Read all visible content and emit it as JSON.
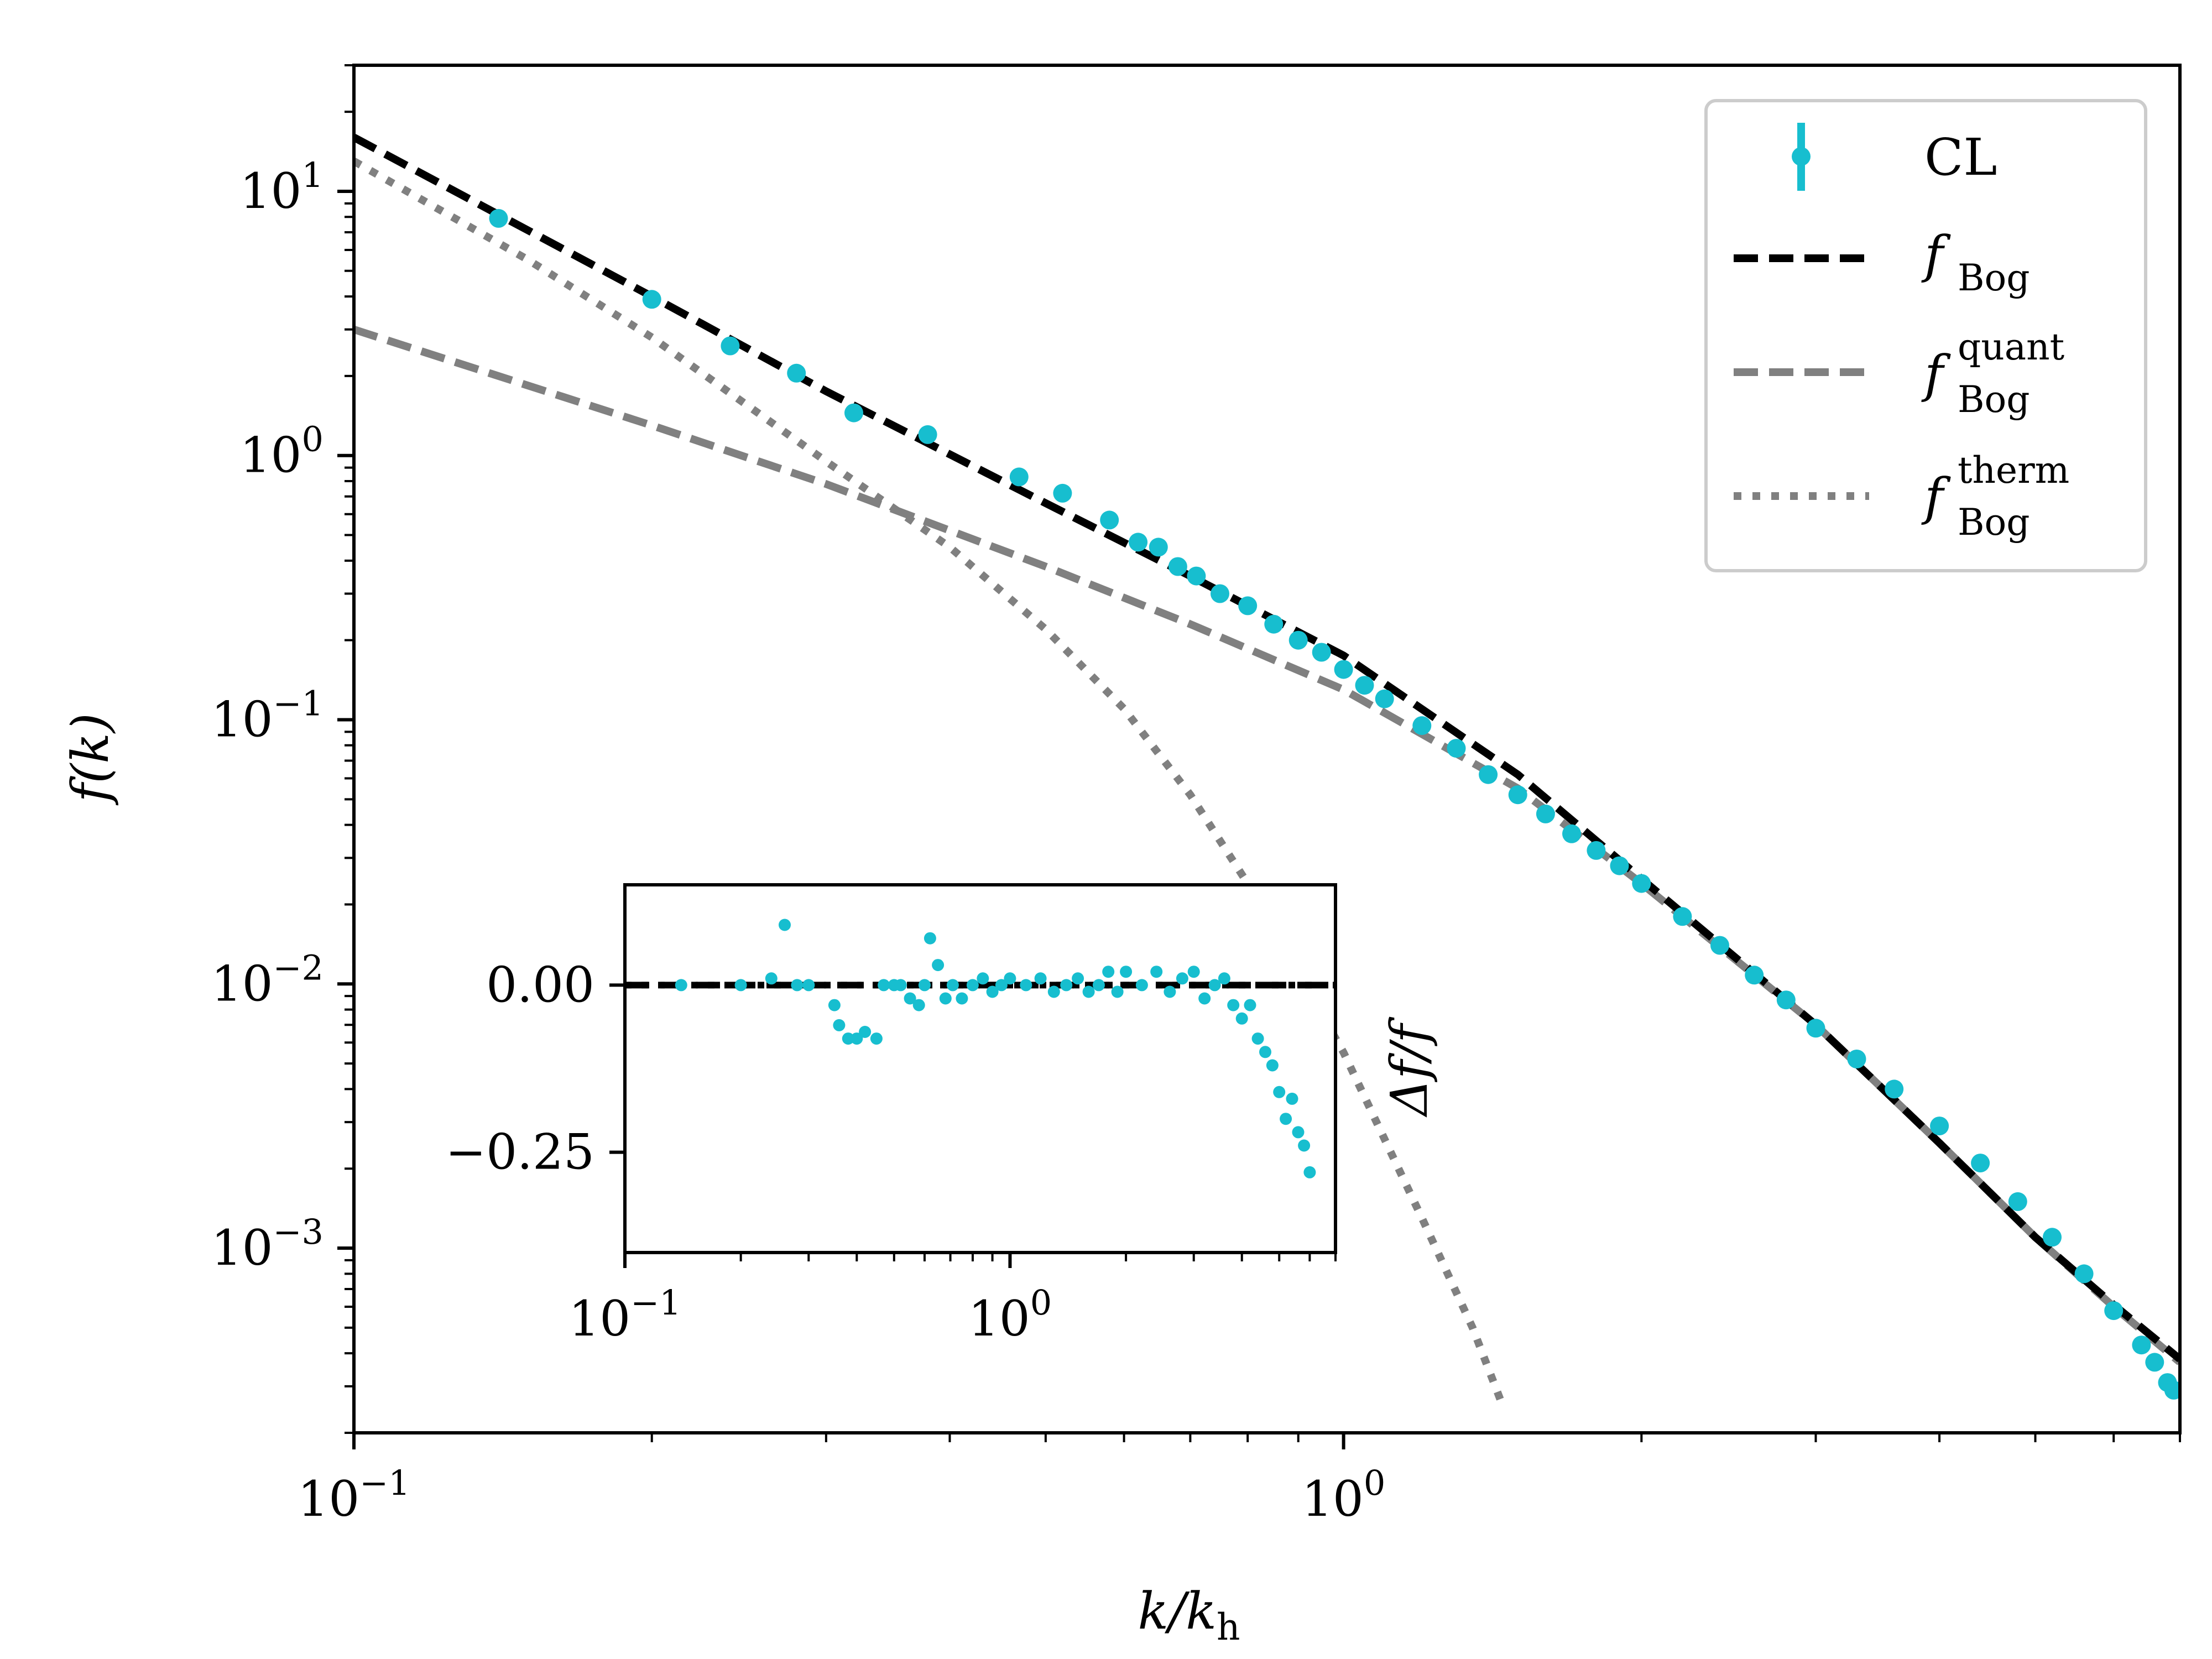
{
  "chart_data": [
    {
      "type": "line",
      "role": "main",
      "xscale": "log",
      "yscale": "log",
      "xlim": [
        0.1,
        7.0
      ],
      "ylim": [
        0.0002,
        30
      ],
      "xlabel": "k/k",
      "xlabel_sub": "h",
      "ylabel": "f(k)",
      "x_ticks": [
        {
          "value": 0.1,
          "base": "10",
          "exp": "−1"
        },
        {
          "value": 1,
          "base": "10",
          "exp": "0"
        }
      ],
      "y_ticks": [
        {
          "value": 10,
          "base": "10",
          "exp": "1"
        },
        {
          "value": 1,
          "base": "10",
          "exp": "0"
        },
        {
          "value": 0.1,
          "base": "10",
          "exp": "−1"
        },
        {
          "value": 0.01,
          "base": "10",
          "exp": "−2"
        },
        {
          "value": 0.001,
          "base": "10",
          "exp": "−3"
        }
      ],
      "legend_position": "top-right",
      "series": [
        {
          "name": "CL",
          "style": "markers-errorbar",
          "color": "#17becf",
          "points": [
            [
              0.14,
              7.9
            ],
            [
              0.2,
              3.9
            ],
            [
              0.24,
              2.6
            ],
            [
              0.28,
              2.05
            ],
            [
              0.32,
              1.45
            ],
            [
              0.38,
              1.2
            ],
            [
              0.47,
              0.83
            ],
            [
              0.52,
              0.72
            ],
            [
              0.58,
              0.57
            ],
            [
              0.62,
              0.47
            ],
            [
              0.65,
              0.45
            ],
            [
              0.68,
              0.38
            ],
            [
              0.71,
              0.35
            ],
            [
              0.75,
              0.3
            ],
            [
              0.8,
              0.27
            ],
            [
              0.85,
              0.23
            ],
            [
              0.9,
              0.2
            ],
            [
              0.95,
              0.18
            ],
            [
              1.0,
              0.155
            ],
            [
              1.05,
              0.135
            ],
            [
              1.1,
              0.12
            ],
            [
              1.2,
              0.095
            ],
            [
              1.3,
              0.078
            ],
            [
              1.4,
              0.062
            ],
            [
              1.5,
              0.052
            ],
            [
              1.6,
              0.044
            ],
            [
              1.7,
              0.037
            ],
            [
              1.8,
              0.032
            ],
            [
              1.9,
              0.028
            ],
            [
              2.0,
              0.024
            ],
            [
              2.2,
              0.018
            ],
            [
              2.4,
              0.014
            ],
            [
              2.6,
              0.0108
            ],
            [
              2.8,
              0.0087
            ],
            [
              3.0,
              0.0068
            ],
            [
              3.3,
              0.0052
            ],
            [
              3.6,
              0.004
            ],
            [
              4.0,
              0.0029
            ],
            [
              4.4,
              0.0021
            ],
            [
              4.8,
              0.0015
            ],
            [
              5.2,
              0.0011
            ],
            [
              5.6,
              0.0008
            ],
            [
              6.0,
              0.00058
            ],
            [
              6.4,
              0.00043
            ],
            [
              6.6,
              0.00037
            ],
            [
              6.8,
              0.00031
            ],
            [
              6.9,
              0.00029
            ]
          ]
        },
        {
          "name": "f",
          "name_sub": "Bog",
          "style": "dashed",
          "color": "#000000",
          "points": [
            [
              0.1,
              16.0
            ],
            [
              0.2,
              4.0
            ],
            [
              0.3,
              1.75
            ],
            [
              0.5,
              0.66
            ],
            [
              0.7,
              0.35
            ],
            [
              1.0,
              0.175
            ],
            [
              1.5,
              0.062
            ],
            [
              2.0,
              0.025
            ],
            [
              3.0,
              0.007
            ],
            [
              4.0,
              0.0025
            ],
            [
              5.0,
              0.0011
            ],
            [
              6.0,
              0.00061
            ],
            [
              7.0,
              0.00038
            ]
          ]
        },
        {
          "name": "f",
          "name_sub": "Bog",
          "name_sup": "quant",
          "style": "dashed",
          "color": "#808080",
          "points": [
            [
              0.1,
              3.0
            ],
            [
              0.2,
              1.3
            ],
            [
              0.3,
              0.78
            ],
            [
              0.5,
              0.38
            ],
            [
              0.7,
              0.23
            ],
            [
              1.0,
              0.13
            ],
            [
              1.5,
              0.055
            ],
            [
              2.0,
              0.024
            ],
            [
              3.0,
              0.007
            ],
            [
              4.0,
              0.0025
            ],
            [
              5.0,
              0.0011
            ],
            [
              6.0,
              0.0006
            ],
            [
              7.0,
              0.00037
            ]
          ]
        },
        {
          "name": "f",
          "name_sub": "Bog",
          "name_sup": "therm",
          "style": "dotted",
          "color": "#808080",
          "points": [
            [
              0.1,
              13.0
            ],
            [
              0.15,
              5.5
            ],
            [
              0.2,
              2.8
            ],
            [
              0.3,
              0.95
            ],
            [
              0.4,
              0.45
            ],
            [
              0.5,
              0.22
            ],
            [
              0.6,
              0.11
            ],
            [
              0.7,
              0.052
            ],
            [
              0.8,
              0.024
            ],
            [
              1.0,
              0.0055
            ],
            [
              1.2,
              0.0013
            ],
            [
              1.35,
              0.0005
            ],
            [
              1.45,
              0.00025
            ]
          ]
        }
      ]
    },
    {
      "type": "scatter",
      "role": "inset",
      "xscale": "log",
      "xlim": [
        0.1,
        7.0
      ],
      "ylim": [
        -0.4,
        0.15
      ],
      "ylabel": "Δf/f",
      "x_ticks": [
        {
          "value": 0.1,
          "base": "10",
          "exp": "−1"
        },
        {
          "value": 1,
          "base": "10",
          "exp": "0"
        }
      ],
      "y_ticks": [
        {
          "value": 0.0,
          "label": "0.00"
        },
        {
          "value": -0.25,
          "label": "−0.25"
        }
      ],
      "reference_lines": [
        {
          "name": "f_Bog",
          "y": 0.0,
          "style": "dashed",
          "color": "#000000"
        },
        {
          "name": "f_Bog zero dotted",
          "y": 0.0,
          "style": "dotted",
          "color": "#000000"
        }
      ],
      "series": [
        {
          "name": "CL",
          "color": "#17becf",
          "points": [
            [
              0.14,
              0.0
            ],
            [
              0.2,
              0.0
            ],
            [
              0.24,
              0.01
            ],
            [
              0.26,
              0.09
            ],
            [
              0.28,
              0.0
            ],
            [
              0.3,
              0.0
            ],
            [
              0.35,
              -0.03
            ],
            [
              0.36,
              -0.06
            ],
            [
              0.38,
              -0.08
            ],
            [
              0.4,
              -0.08
            ],
            [
              0.42,
              -0.07
            ],
            [
              0.45,
              -0.08
            ],
            [
              0.47,
              0.0
            ],
            [
              0.5,
              0.0
            ],
            [
              0.52,
              0.0
            ],
            [
              0.55,
              -0.02
            ],
            [
              0.58,
              -0.03
            ],
            [
              0.6,
              0.0
            ],
            [
              0.62,
              0.07
            ],
            [
              0.65,
              0.03
            ],
            [
              0.68,
              -0.02
            ],
            [
              0.71,
              0.0
            ],
            [
              0.75,
              -0.02
            ],
            [
              0.8,
              0.0
            ],
            [
              0.85,
              0.01
            ],
            [
              0.9,
              -0.01
            ],
            [
              0.95,
              0.0
            ],
            [
              1.0,
              0.01
            ],
            [
              1.1,
              0.0
            ],
            [
              1.2,
              0.01
            ],
            [
              1.3,
              -0.01
            ],
            [
              1.4,
              0.0
            ],
            [
              1.5,
              0.01
            ],
            [
              1.6,
              -0.01
            ],
            [
              1.7,
              0.0
            ],
            [
              1.8,
              0.02
            ],
            [
              1.9,
              -0.01
            ],
            [
              2.0,
              0.02
            ],
            [
              2.2,
              0.0
            ],
            [
              2.4,
              0.02
            ],
            [
              2.6,
              -0.01
            ],
            [
              2.8,
              0.01
            ],
            [
              3.0,
              0.02
            ],
            [
              3.2,
              -0.02
            ],
            [
              3.4,
              0.0
            ],
            [
              3.6,
              0.01
            ],
            [
              3.8,
              -0.03
            ],
            [
              4.0,
              -0.05
            ],
            [
              4.2,
              -0.03
            ],
            [
              4.4,
              -0.08
            ],
            [
              4.6,
              -0.1
            ],
            [
              4.8,
              -0.12
            ],
            [
              5.0,
              -0.16
            ],
            [
              5.2,
              -0.2
            ],
            [
              5.4,
              -0.17
            ],
            [
              5.6,
              -0.22
            ],
            [
              5.8,
              -0.24
            ],
            [
              6.0,
              -0.28
            ]
          ]
        }
      ]
    }
  ],
  "legend": [
    {
      "label": "CL"
    },
    {
      "label": "f",
      "sub": "Bog"
    },
    {
      "label": "f",
      "sub": "Bog",
      "sup": "quant"
    },
    {
      "label": "f",
      "sub": "Bog",
      "sup": "therm"
    }
  ]
}
